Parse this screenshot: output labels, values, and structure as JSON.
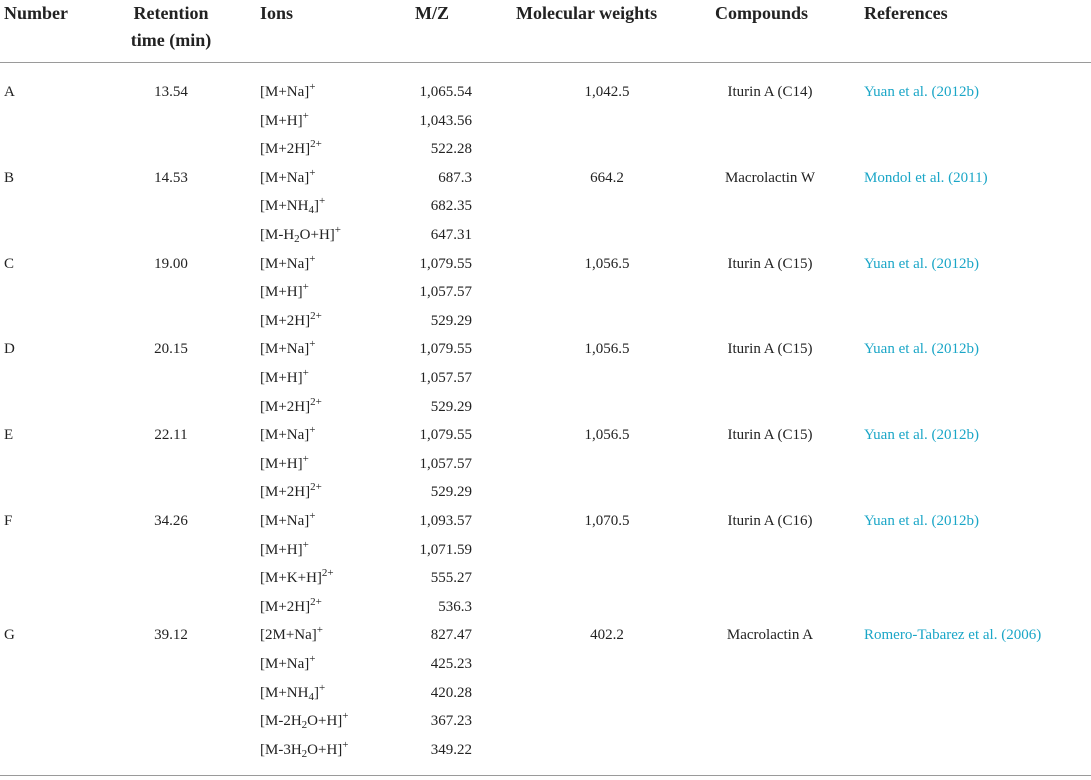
{
  "headers": {
    "number": "Number",
    "retention_line1": "Retention",
    "retention_line2": "time (min)",
    "ions": "Ions",
    "mz": "M/Z",
    "mw": "Molecular weights",
    "compounds": "Compounds",
    "references": "References"
  },
  "groups": [
    {
      "number": "A",
      "retention": "13.54",
      "mw": "1,042.5",
      "compound": "Iturin A (C14)",
      "reference": "Yuan et al. (2012b)",
      "ions": [
        {
          "base": "[M+Na]",
          "sup": "+",
          "mz": "1,065.54"
        },
        {
          "base": "[M+H]",
          "sup": "+",
          "mz": "1,043.56"
        },
        {
          "base": "[M+2H]",
          "sup": "2+",
          "mz": "522.28"
        }
      ]
    },
    {
      "number": "B",
      "retention": "14.53",
      "mw": "664.2",
      "compound": "Macrolactin W",
      "reference": "Mondol et al. (2011)",
      "ions": [
        {
          "base": "[M+Na]",
          "sup": "+",
          "mz": "687.3"
        },
        {
          "base": "[M+NH",
          "sub": "4",
          "after": "]",
          "sup": "+",
          "mz": "682.35"
        },
        {
          "base": "[M-H",
          "sub": "2",
          "after": "O+H]",
          "sup": "+",
          "mz": "647.31"
        }
      ]
    },
    {
      "number": "C",
      "retention": "19.00",
      "mw": "1,056.5",
      "compound": "Iturin A (C15)",
      "reference": "Yuan et al. (2012b)",
      "ions": [
        {
          "base": "[M+Na]",
          "sup": "+",
          "mz": "1,079.55"
        },
        {
          "base": "[M+H]",
          "sup": "+",
          "mz": "1,057.57"
        },
        {
          "base": "[M+2H]",
          "sup": "2+",
          "mz": "529.29"
        }
      ]
    },
    {
      "number": "D",
      "retention": "20.15",
      "mw": "1,056.5",
      "compound": "Iturin A (C15)",
      "reference": "Yuan et al. (2012b)",
      "ions": [
        {
          "base": "[M+Na]",
          "sup": "+",
          "mz": "1,079.55"
        },
        {
          "base": "[M+H]",
          "sup": "+",
          "mz": "1,057.57"
        },
        {
          "base": "[M+2H]",
          "sup": "2+",
          "mz": "529.29"
        }
      ]
    },
    {
      "number": "E",
      "retention": "22.11",
      "mw": "1,056.5",
      "compound": "Iturin A (C15)",
      "reference": "Yuan et al. (2012b)",
      "ions": [
        {
          "base": "[M+Na]",
          "sup": "+",
          "mz": "1,079.55"
        },
        {
          "base": "[M+H]",
          "sup": "+",
          "mz": "1,057.57"
        },
        {
          "base": "[M+2H]",
          "sup": "2+",
          "mz": "529.29"
        }
      ]
    },
    {
      "number": "F",
      "retention": "34.26",
      "mw": "1,070.5",
      "compound": "Iturin A (C16)",
      "reference": "Yuan et al. (2012b)",
      "ions": [
        {
          "base": "[M+Na]",
          "sup": "+",
          "mz": "1,093.57"
        },
        {
          "base": "[M+H]",
          "sup": "+",
          "mz": "1,071.59"
        },
        {
          "base": "[M+K+H]",
          "sup": "2+",
          "mz": "555.27"
        },
        {
          "base": "[M+2H]",
          "sup": "2+",
          "mz": "536.3"
        }
      ]
    },
    {
      "number": "G",
      "retention": "39.12",
      "mw": "402.2",
      "compound": "Macrolactin A",
      "reference": "Romero-Tabarez et al. (2006)",
      "ions": [
        {
          "base": "[2M+Na]",
          "sup": "+",
          "mz": "827.47"
        },
        {
          "base": "[M+Na]",
          "sup": "+",
          "mz": "425.23"
        },
        {
          "base": "[M+NH",
          "sub": "4",
          "after": "]",
          "sup": "+",
          "mz": "420.28"
        },
        {
          "base": "[M-2H",
          "sub": "2",
          "after": "O+H]",
          "sup": "+",
          "mz": "367.23"
        },
        {
          "base": "[M-3H",
          "sub": "2",
          "after": "O+H]",
          "sup": "+",
          "mz": "349.22"
        }
      ]
    }
  ]
}
